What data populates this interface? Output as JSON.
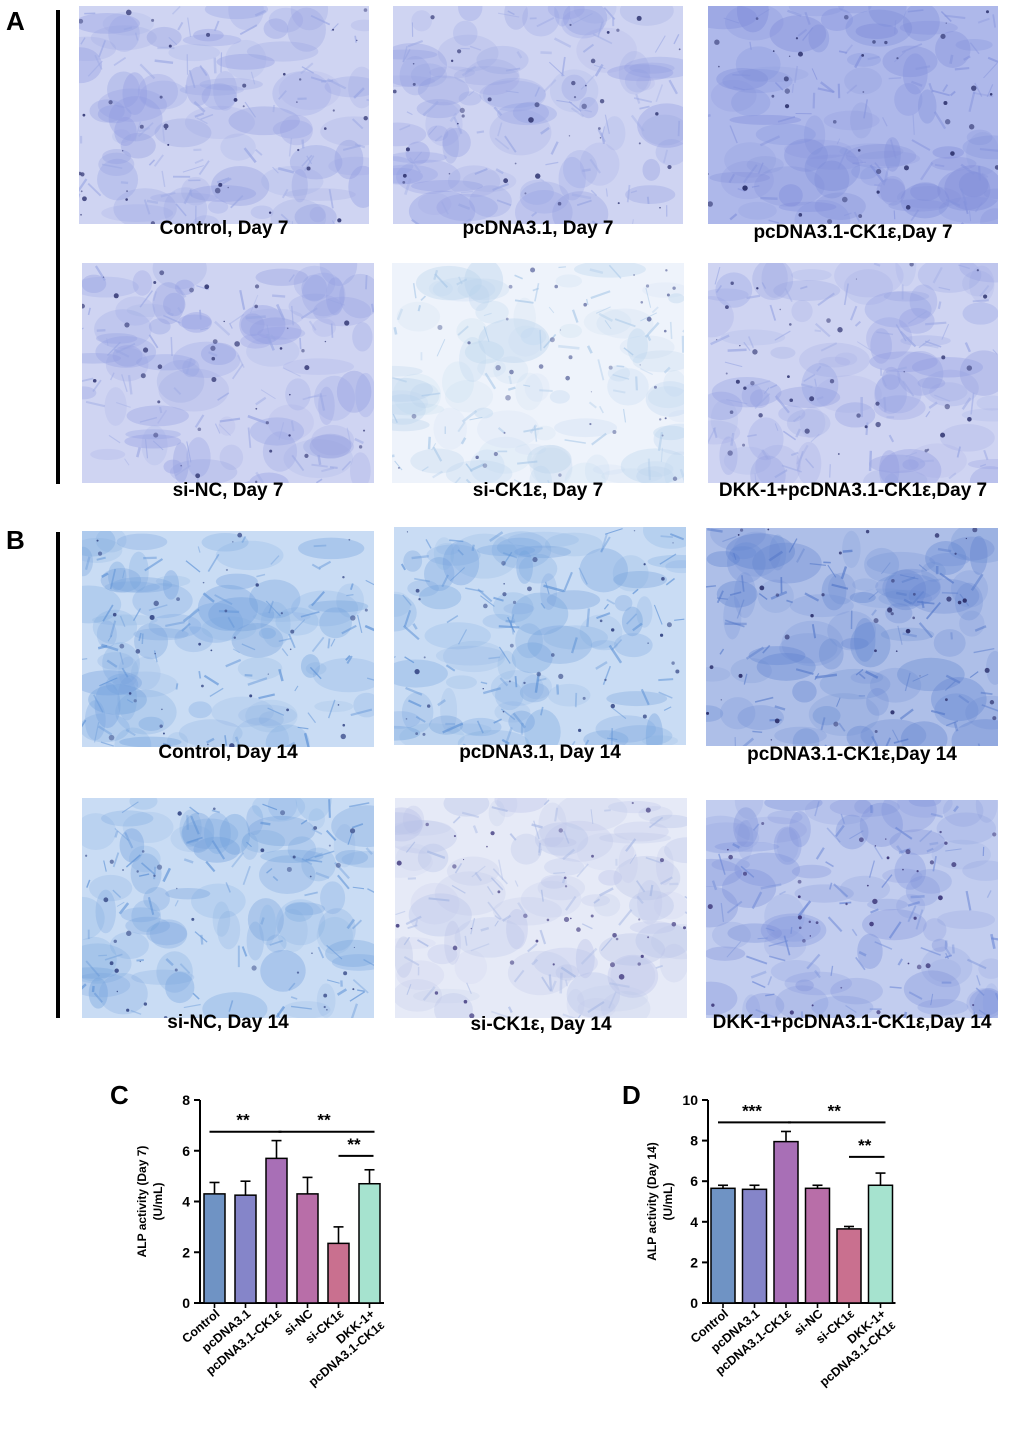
{
  "panels": {
    "A": {
      "letter": "A",
      "images": [
        {
          "caption": "Control, Day 7",
          "stain": "medium"
        },
        {
          "caption": "pcDNA3.1, Day 7",
          "stain": "medium"
        },
        {
          "caption": "pcDNA3.1-CK1ε,Day 7",
          "stain": "dark"
        },
        {
          "caption": "si-NC, Day 7",
          "stain": "medium"
        },
        {
          "caption": "si-CK1ε, Day 7",
          "stain": "light"
        },
        {
          "caption": "DKK-1+pcDNA3.1-CK1ε,Day 7",
          "stain": "medium"
        }
      ]
    },
    "B": {
      "letter": "B",
      "images": [
        {
          "caption": "Control, Day 14",
          "stain": "fibrous"
        },
        {
          "caption": "pcDNA3.1, Day 14",
          "stain": "fibrous"
        },
        {
          "caption": "pcDNA3.1-CK1ε,Day 14",
          "stain": "fibrous-dark"
        },
        {
          "caption": "si-NC, Day 14",
          "stain": "fibrous"
        },
        {
          "caption": "si-CK1ε, Day 14",
          "stain": "light-purple"
        },
        {
          "caption": "DKK-1+pcDNA3.1-CK1ε,Day 14",
          "stain": "fibrous-purple"
        }
      ]
    }
  },
  "chart_data": [
    {
      "panel": "C",
      "type": "bar",
      "ylabel": "ALP activity (Day 7)",
      "ylabel_unit": "(U/mL)",
      "ylim": [
        0,
        8
      ],
      "yticks": [
        0,
        2,
        4,
        6,
        8
      ],
      "categories": [
        "Control",
        "pcDNA3.1",
        "pcDNA3.1-CK1ε",
        "si-NC",
        "si-CK1ε",
        "DKK-1+\npcDNA3.1-CK1ε"
      ],
      "values": [
        4.3,
        4.25,
        5.7,
        4.3,
        2.35,
        4.7
      ],
      "errors": [
        0.45,
        0.55,
        0.7,
        0.65,
        0.65,
        0.55
      ],
      "colors": [
        "#6f93c4",
        "#8585c9",
        "#a86fb6",
        "#b86ea8",
        "#c9708f",
        "#a6e3cf"
      ],
      "significance": [
        {
          "from": 0,
          "to": 2,
          "label": "**",
          "level": 6.75
        },
        {
          "from": 2,
          "to": 5,
          "label": "**",
          "level": 6.75
        },
        {
          "from": 4,
          "to": 5,
          "label": "**",
          "level": 5.8
        }
      ]
    },
    {
      "panel": "D",
      "type": "bar",
      "ylabel": "ALP activity (Day 14)",
      "ylabel_unit": "(U/mL)",
      "ylim": [
        0,
        10
      ],
      "yticks": [
        0,
        2,
        4,
        6,
        8,
        10
      ],
      "categories": [
        "Control",
        "pcDNA3.1",
        "pcDNA3.1-CK1ε",
        "si-NC",
        "si-CK1ε",
        "DKK-1+\npcDNA3.1-CK1ε"
      ],
      "values": [
        5.65,
        5.6,
        7.95,
        5.65,
        3.65,
        5.8
      ],
      "errors": [
        0.15,
        0.2,
        0.5,
        0.15,
        0.12,
        0.6
      ],
      "colors": [
        "#6f93c4",
        "#8585c9",
        "#a86fb6",
        "#b86ea8",
        "#c9708f",
        "#a6e3cf"
      ],
      "significance": [
        {
          "from": 0,
          "to": 2,
          "label": "***",
          "level": 8.9
        },
        {
          "from": 2,
          "to": 5,
          "label": "**",
          "level": 8.9
        },
        {
          "from": 4,
          "to": 5,
          "label": "**",
          "level": 7.2
        }
      ]
    }
  ]
}
